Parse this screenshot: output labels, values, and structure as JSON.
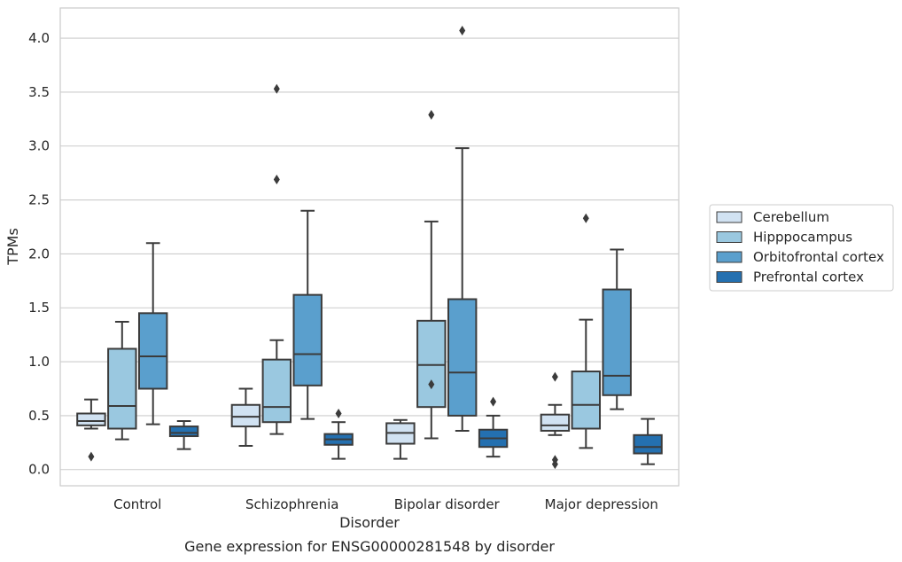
{
  "chart_data": {
    "type": "box",
    "title": "",
    "caption": "Gene expression for ENSG00000281548 by disorder",
    "xlabel": "Disorder",
    "ylabel": "TPMs",
    "ylim": [
      -0.15,
      4.28
    ],
    "yticks": [
      "0.0",
      "0.5",
      "1.0",
      "1.5",
      "2.0",
      "2.5",
      "3.0",
      "3.5",
      "4.0"
    ],
    "grid": "horizontal",
    "legend_position": "right",
    "categories": [
      "Control",
      "Schizophrenia",
      "Bipolar disorder",
      "Major depression"
    ],
    "series": [
      {
        "name": "Cerebellum",
        "color": "#d1e2f2",
        "boxes": [
          {
            "whisker_low": 0.38,
            "q1": 0.41,
            "median": 0.45,
            "q3": 0.52,
            "whisker_high": 0.65,
            "outliers": [
              0.12
            ]
          },
          {
            "whisker_low": 0.22,
            "q1": 0.4,
            "median": 0.49,
            "q3": 0.6,
            "whisker_high": 0.75,
            "outliers": []
          },
          {
            "whisker_low": 0.1,
            "q1": 0.24,
            "median": 0.34,
            "q3": 0.43,
            "whisker_high": 0.46,
            "outliers": []
          },
          {
            "whisker_low": 0.32,
            "q1": 0.36,
            "median": 0.41,
            "q3": 0.51,
            "whisker_high": 0.6,
            "outliers": [
              0.86,
              0.09,
              0.05
            ]
          }
        ]
      },
      {
        "name": "Hipppocampus",
        "color": "#9ac8e0",
        "boxes": [
          {
            "whisker_low": 0.28,
            "q1": 0.38,
            "median": 0.59,
            "q3": 1.12,
            "whisker_high": 1.37,
            "outliers": []
          },
          {
            "whisker_low": 0.33,
            "q1": 0.44,
            "median": 0.58,
            "q3": 1.02,
            "whisker_high": 1.2,
            "outliers": [
              3.53,
              2.69
            ]
          },
          {
            "whisker_low": 0.29,
            "q1": 0.58,
            "median": 0.97,
            "q3": 1.38,
            "whisker_high": 2.3,
            "outliers": [
              3.29,
              0.79
            ]
          },
          {
            "whisker_low": 0.2,
            "q1": 0.38,
            "median": 0.6,
            "q3": 0.91,
            "whisker_high": 1.39,
            "outliers": [
              2.33
            ]
          }
        ]
      },
      {
        "name": "Orbitofrontal cortex",
        "color": "#5a9fcd",
        "boxes": [
          {
            "whisker_low": 0.42,
            "q1": 0.75,
            "median": 1.05,
            "q3": 1.45,
            "whisker_high": 2.1,
            "outliers": []
          },
          {
            "whisker_low": 0.47,
            "q1": 0.78,
            "median": 1.07,
            "q3": 1.62,
            "whisker_high": 2.4,
            "outliers": []
          },
          {
            "whisker_low": 0.36,
            "q1": 0.5,
            "median": 0.9,
            "q3": 1.58,
            "whisker_high": 2.98,
            "outliers": [
              4.07
            ]
          },
          {
            "whisker_low": 0.56,
            "q1": 0.69,
            "median": 0.87,
            "q3": 1.67,
            "whisker_high": 2.04,
            "outliers": []
          }
        ]
      },
      {
        "name": "Prefrontal cortex",
        "color": "#2470b0",
        "boxes": [
          {
            "whisker_low": 0.19,
            "q1": 0.31,
            "median": 0.34,
            "q3": 0.4,
            "whisker_high": 0.45,
            "outliers": []
          },
          {
            "whisker_low": 0.1,
            "q1": 0.23,
            "median": 0.28,
            "q3": 0.33,
            "whisker_high": 0.44,
            "outliers": [
              0.52
            ]
          },
          {
            "whisker_low": 0.12,
            "q1": 0.21,
            "median": 0.29,
            "q3": 0.37,
            "whisker_high": 0.5,
            "outliers": [
              0.63
            ]
          },
          {
            "whisker_low": 0.05,
            "q1": 0.15,
            "median": 0.21,
            "q3": 0.32,
            "whisker_high": 0.47,
            "outliers": []
          }
        ]
      }
    ]
  }
}
